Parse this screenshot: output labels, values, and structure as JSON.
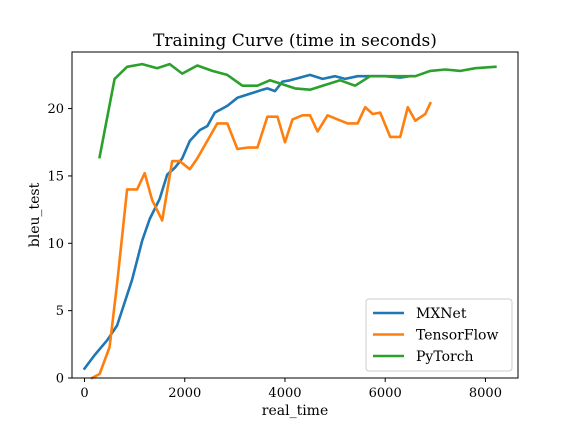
{
  "chart_data": {
    "type": "line",
    "title": "Training Curve (time in seconds)",
    "xlabel": "real_time",
    "ylabel": "bleu_test",
    "xlim": [
      -250,
      8650
    ],
    "ylim": [
      0,
      24.2
    ],
    "xticks": [
      0,
      2000,
      4000,
      6000,
      8000
    ],
    "yticks": [
      0,
      5,
      10,
      15,
      20
    ],
    "legend_position": "lower-right",
    "grid": false,
    "series": [
      {
        "name": "MXNet",
        "color": "#1f77b4",
        "x": [
          0,
          200,
          450,
          650,
          950,
          1150,
          1300,
          1500,
          1650,
          1800,
          1950,
          2100,
          2300,
          2450,
          2600,
          2850,
          3050,
          3300,
          3550,
          3650,
          3800,
          3950,
          4100,
          4300,
          4500,
          4750,
          5000,
          5200,
          5450,
          5700,
          6000,
          6300,
          6500
        ],
        "y": [
          0.7,
          1.7,
          2.8,
          3.9,
          7.3,
          10.2,
          11.8,
          13.3,
          15.1,
          15.6,
          16.3,
          17.6,
          18.4,
          18.7,
          19.7,
          20.2,
          20.8,
          21.1,
          21.4,
          21.5,
          21.3,
          22.0,
          22.1,
          22.3,
          22.5,
          22.2,
          22.4,
          22.2,
          22.4,
          22.4,
          22.4,
          22.3,
          22.4
        ]
      },
      {
        "name": "TensorFlow",
        "color": "#ff7f0e",
        "x": [
          150,
          300,
          500,
          650,
          850,
          1050,
          1200,
          1350,
          1550,
          1750,
          1900,
          2100,
          2250,
          2450,
          2650,
          2850,
          3050,
          3250,
          3450,
          3650,
          3850,
          4000,
          4150,
          4350,
          4500,
          4650,
          4850,
          5050,
          5250,
          5450,
          5600,
          5750,
          5900,
          6100,
          6300,
          6450,
          6600,
          6800,
          6900
        ],
        "y": [
          0.0,
          0.3,
          2.3,
          7.0,
          14.0,
          14.0,
          15.2,
          13.2,
          11.7,
          16.1,
          16.1,
          15.5,
          16.3,
          17.6,
          18.9,
          18.9,
          17.0,
          17.1,
          17.1,
          19.4,
          19.4,
          17.5,
          19.2,
          19.5,
          19.5,
          18.3,
          19.5,
          19.2,
          18.9,
          18.9,
          20.1,
          19.6,
          19.7,
          17.9,
          17.9,
          20.1,
          19.1,
          19.6,
          20.4
        ]
      },
      {
        "name": "PyTorch",
        "color": "#2ca02c",
        "x": [
          300,
          600,
          850,
          1150,
          1450,
          1700,
          1950,
          2250,
          2550,
          2850,
          3150,
          3450,
          3700,
          3950,
          4200,
          4500,
          4750,
          5100,
          5400,
          5700,
          6000,
          6300,
          6600,
          6900,
          7200,
          7500,
          7800,
          8200
        ],
        "y": [
          16.4,
          22.2,
          23.1,
          23.3,
          23.0,
          23.3,
          22.6,
          23.2,
          22.8,
          22.5,
          21.7,
          21.7,
          22.1,
          21.8,
          21.5,
          21.4,
          21.7,
          22.1,
          21.7,
          22.4,
          22.4,
          22.4,
          22.4,
          22.8,
          22.9,
          22.8,
          23.0,
          23.1
        ]
      }
    ]
  }
}
